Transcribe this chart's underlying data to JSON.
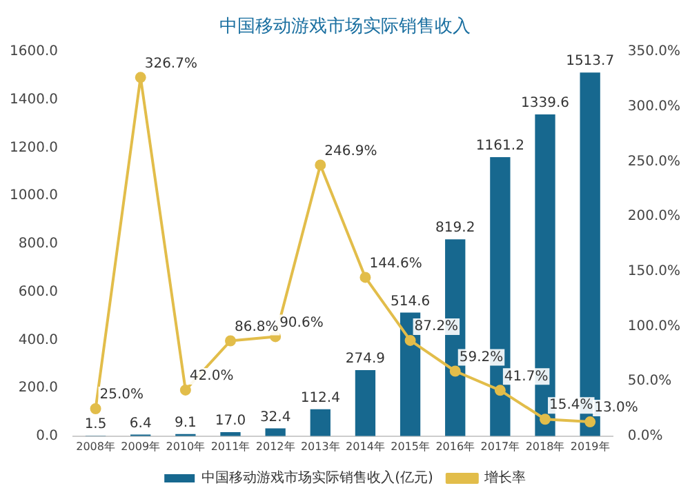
{
  "chart_data": {
    "type": "bar",
    "title": "中国移动游戏市场实际销售收入",
    "categories": [
      "2008年",
      "2009年",
      "2010年",
      "2011年",
      "2012年",
      "2013年",
      "2014年",
      "2015年",
      "2016年",
      "2017年",
      "2018年",
      "2019年"
    ],
    "series": [
      {
        "name": "中国移动游戏市场实际销售收入(亿元)",
        "color": "#17688f",
        "values": [
          1.5,
          6.4,
          9.1,
          17.0,
          32.4,
          112.4,
          274.9,
          514.6,
          819.2,
          1161.2,
          1339.6,
          1513.7
        ],
        "value_labels": [
          "1.5",
          "6.4",
          "9.1",
          "17.0",
          "32.4",
          "112.4",
          "274.9",
          "514.6",
          "819.2",
          "1161.2",
          "1339.6",
          "1513.7"
        ]
      },
      {
        "name": "增长率",
        "type": "line",
        "axis": "y2",
        "color": "#e2bd4a",
        "marker": "circle",
        "values": [
          25.0,
          326.7,
          42.0,
          86.8,
          90.6,
          246.9,
          144.6,
          87.2,
          59.2,
          41.7,
          15.4,
          13.0
        ],
        "value_labels": [
          "25.0%",
          "326.7%",
          "42.0%",
          "86.8%",
          "90.6%",
          "246.9%",
          "144.6%",
          "87.2%",
          "59.2%",
          "41.7%",
          "15.4%",
          "13.0%"
        ]
      }
    ],
    "ylim": [
      0,
      1600
    ],
    "yticks": [
      {
        "value": 0,
        "label": "0.0"
      },
      {
        "value": 200,
        "label": "200.0"
      },
      {
        "value": 400,
        "label": "400.0"
      },
      {
        "value": 600,
        "label": "600.0"
      },
      {
        "value": 800,
        "label": "800.0"
      },
      {
        "value": 1000,
        "label": "1000.0"
      },
      {
        "value": 1200,
        "label": "1200.0"
      },
      {
        "value": 1400,
        "label": "1400.0"
      },
      {
        "value": 1600,
        "label": "1600.0"
      }
    ],
    "y2lim": [
      0,
      350
    ],
    "y2ticks": [
      {
        "value": 0,
        "label": "0.0%"
      },
      {
        "value": 50,
        "label": "50.0%"
      },
      {
        "value": 100,
        "label": "100.0%"
      },
      {
        "value": 150,
        "label": "150.0%"
      },
      {
        "value": 200,
        "label": "200.0%"
      },
      {
        "value": 250,
        "label": "250.0%"
      },
      {
        "value": 300,
        "label": "300.0%"
      },
      {
        "value": 350,
        "label": "350.0%"
      }
    ],
    "legend": "bottom"
  }
}
